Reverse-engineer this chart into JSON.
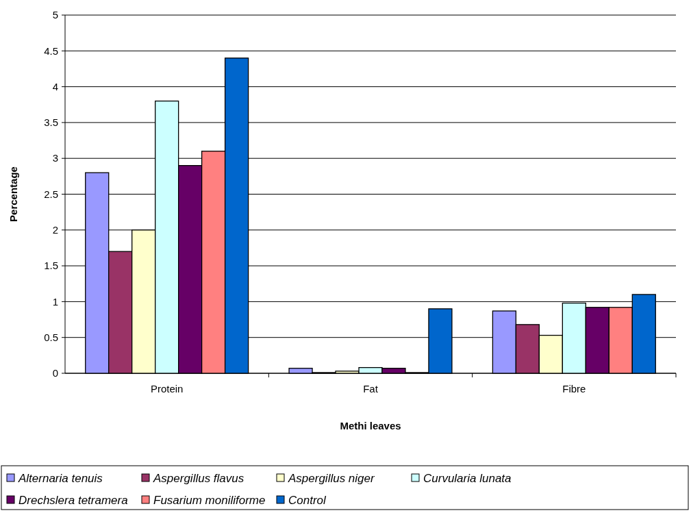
{
  "chart_data": {
    "type": "bar",
    "xlabel": "Methi leaves",
    "ylabel": "Percentage",
    "categories": [
      "Protein",
      "Fat",
      "Fibre"
    ],
    "series": [
      {
        "name": "Alternaria tenuis",
        "color": "#9999ff",
        "values": [
          2.8,
          0.07,
          0.87
        ]
      },
      {
        "name": "Aspergillus flavus",
        "color": "#993366",
        "values": [
          1.7,
          0.01,
          0.68
        ]
      },
      {
        "name": "Aspergillus niger",
        "color": "#ffffcc",
        "values": [
          2.0,
          0.03,
          0.53
        ]
      },
      {
        "name": "Curvularia lunata",
        "color": "#ccffff",
        "values": [
          3.8,
          0.08,
          0.98
        ]
      },
      {
        "name": "Drechslera tetramera",
        "color": "#660066",
        "values": [
          2.9,
          0.07,
          0.92
        ]
      },
      {
        "name": "Fusarium moniliforme",
        "color": "#ff8080",
        "values": [
          3.1,
          0.01,
          0.92
        ]
      },
      {
        "name": "Control",
        "color": "#0066cc",
        "values": [
          4.4,
          0.9,
          1.1
        ]
      }
    ],
    "ylim": [
      0,
      5
    ],
    "yticks": [
      0,
      0.5,
      1,
      1.5,
      2,
      2.5,
      3,
      3.5,
      4,
      4.5,
      5
    ],
    "grid": "y",
    "legend": "bottom"
  }
}
